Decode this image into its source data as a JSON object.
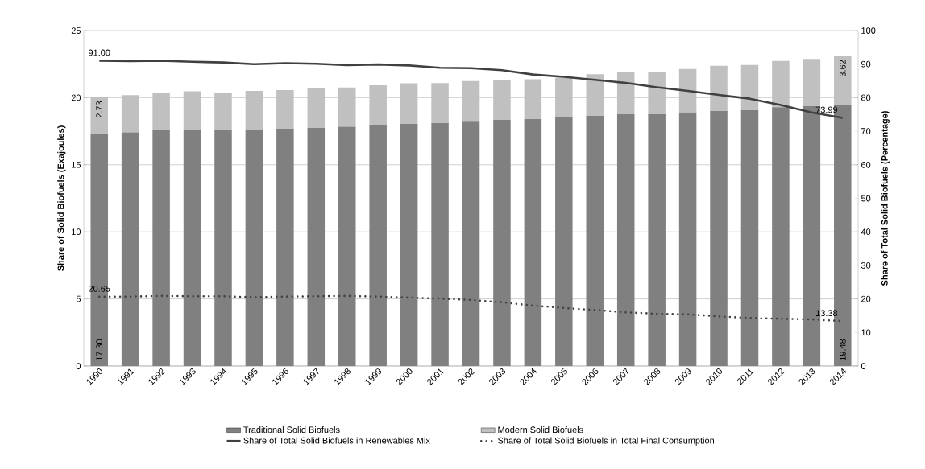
{
  "chart_data": {
    "type": "bar",
    "stacked": true,
    "ylabel": "Share of Solid Biofuels (Exajoules)",
    "y2label": "Share of Total Solid Biofuels (Percentage)",
    "categories": [
      "1990",
      "1991",
      "1992",
      "1993",
      "1994",
      "1995",
      "1996",
      "1997",
      "1998",
      "1999",
      "2000",
      "2001",
      "2002",
      "2003",
      "2004",
      "2005",
      "2006",
      "2007",
      "2008",
      "2009",
      "2010",
      "2011",
      "2012",
      "2013",
      "2014"
    ],
    "series": [
      {
        "name": "Traditional Solid Biofuels",
        "type": "bar",
        "color": "#808080",
        "values": [
          17.3,
          17.42,
          17.57,
          17.63,
          17.58,
          17.63,
          17.69,
          17.75,
          17.84,
          17.94,
          18.04,
          18.1,
          18.21,
          18.35,
          18.4,
          18.53,
          18.64,
          18.77,
          18.77,
          18.9,
          19.0,
          19.07,
          19.29,
          19.37,
          19.48
        ],
        "value_labels": [
          "17.30",
          null,
          null,
          null,
          null,
          null,
          null,
          null,
          null,
          null,
          null,
          null,
          null,
          null,
          null,
          null,
          null,
          null,
          null,
          null,
          null,
          null,
          null,
          null,
          "19.48"
        ]
      },
      {
        "name": "Modern Solid Biofuels",
        "type": "bar",
        "color": "#c0c0c0",
        "values": [
          2.73,
          2.77,
          2.79,
          2.85,
          2.76,
          2.88,
          2.88,
          2.95,
          2.92,
          2.99,
          3.03,
          2.99,
          3.03,
          3.0,
          2.98,
          2.96,
          3.11,
          3.17,
          3.17,
          3.23,
          3.37,
          3.36,
          3.45,
          3.52,
          3.62
        ],
        "value_labels": [
          "2.73",
          null,
          null,
          null,
          null,
          null,
          null,
          null,
          null,
          null,
          null,
          null,
          null,
          null,
          null,
          null,
          null,
          null,
          null,
          null,
          null,
          null,
          null,
          null,
          "3.62"
        ]
      },
      {
        "name": "Share of Total Solid Biofuels in Renewables Mix",
        "type": "line",
        "axis": "y2",
        "color": "#404040",
        "line_style": "solid",
        "values": [
          91.0,
          90.9,
          91.0,
          90.7,
          90.5,
          90.0,
          90.3,
          90.1,
          89.7,
          89.9,
          89.6,
          88.9,
          88.8,
          88.2,
          86.9,
          86.2,
          85.3,
          84.4,
          83.1,
          82.0,
          80.8,
          79.7,
          77.8,
          75.6,
          73.99
        ],
        "value_labels": [
          "91.00",
          null,
          null,
          null,
          null,
          null,
          null,
          null,
          null,
          null,
          null,
          null,
          null,
          null,
          null,
          null,
          null,
          null,
          null,
          null,
          null,
          null,
          null,
          null,
          "73.99"
        ]
      },
      {
        "name": "Share of Total Solid Biofuels in Total Final Consumption",
        "type": "line",
        "axis": "y2",
        "color": "#404040",
        "line_style": "dotted",
        "values": [
          20.65,
          20.7,
          20.9,
          20.8,
          20.8,
          20.5,
          20.7,
          20.8,
          20.9,
          20.7,
          20.4,
          20.1,
          19.7,
          19.0,
          18.0,
          17.3,
          16.7,
          16.0,
          15.6,
          15.4,
          14.8,
          14.3,
          14.1,
          13.9,
          13.38
        ],
        "value_labels": [
          "20.65",
          null,
          null,
          null,
          null,
          null,
          null,
          null,
          null,
          null,
          null,
          null,
          null,
          null,
          null,
          null,
          null,
          null,
          null,
          null,
          null,
          null,
          null,
          null,
          "13.38"
        ]
      }
    ],
    "ylim": [
      0,
      25
    ],
    "yticks": [
      0,
      5,
      10,
      15,
      20,
      25
    ],
    "y2lim": [
      0,
      100
    ],
    "y2ticks": [
      0,
      10,
      20,
      30,
      40,
      50,
      60,
      70,
      80,
      90,
      100
    ],
    "grid": "y",
    "legend": "bottom",
    "marker": "none"
  }
}
